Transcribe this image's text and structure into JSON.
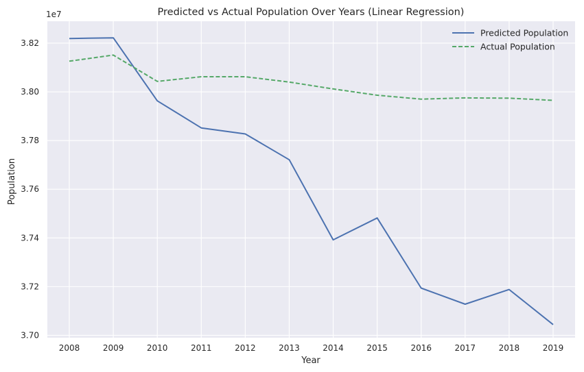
{
  "chart_data": {
    "type": "line",
    "title": "Predicted vs Actual Population Over Years (Linear Regression)",
    "xlabel": "Year",
    "ylabel": "Population",
    "y_offset_label": "1e7",
    "x": [
      "2008",
      "2009",
      "2010",
      "2011",
      "2012",
      "2013",
      "2014",
      "2015",
      "2016",
      "2017",
      "2018",
      "2019"
    ],
    "ylim": [
      36990000,
      38290000
    ],
    "y_ticks": [
      37000000,
      37200000,
      37400000,
      37600000,
      37800000,
      38000000,
      38200000
    ],
    "y_tick_labels": [
      "3.70",
      "3.72",
      "3.74",
      "3.76",
      "3.78",
      "3.80",
      "3.82"
    ],
    "grid": true,
    "legend_position": "top-right",
    "series": [
      {
        "name": "Predicted Population",
        "style": "solid",
        "color": "#4c72b0",
        "values": [
          38219000,
          38222000,
          37963000,
          37852000,
          37827000,
          37721000,
          37392000,
          37482000,
          37194000,
          37128000,
          37188000,
          37044000
        ]
      },
      {
        "name": "Actual Population",
        "style": "dashed",
        "color": "#55a868",
        "values": [
          38126000,
          38151000,
          38043000,
          38062000,
          38062000,
          38040000,
          38012000,
          37986000,
          37970000,
          37975000,
          37974000,
          37965000
        ]
      }
    ]
  }
}
